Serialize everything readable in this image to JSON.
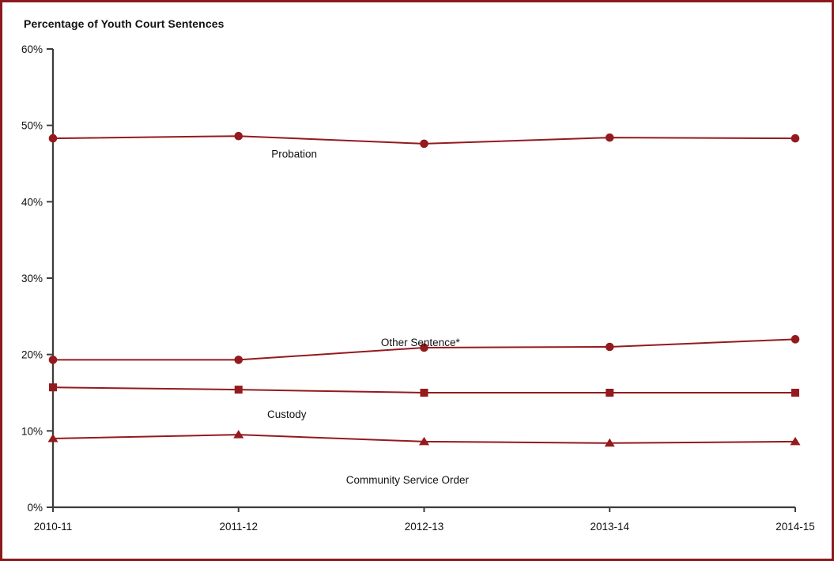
{
  "frame": {
    "border_color": "#8b1a1d",
    "background": "#ffffff"
  },
  "chart_data": {
    "type": "line",
    "title": "Percentage of Youth Court Sentences",
    "categories": [
      "2010-11",
      "2011-12",
      "2012-13",
      "2013-14",
      "2014-15"
    ],
    "series": [
      {
        "name": "Probation",
        "marker": "circle",
        "values": [
          48.3,
          48.6,
          47.6,
          48.4,
          48.3
        ]
      },
      {
        "name": "Other Sentence*",
        "marker": "circle",
        "values": [
          19.3,
          19.3,
          20.9,
          21.0,
          22.0
        ]
      },
      {
        "name": "Custody",
        "marker": "square",
        "values": [
          15.7,
          15.4,
          15.0,
          15.0,
          15.0
        ]
      },
      {
        "name": "Community Service Order",
        "marker": "triangle",
        "values": [
          9.0,
          9.5,
          8.6,
          8.4,
          8.6
        ]
      }
    ],
    "series_labels": [
      {
        "text": "Probation",
        "x": 1.3,
        "y": 46.3
      },
      {
        "text": "Other Sentence*",
        "x": 1.98,
        "y": 21.6
      },
      {
        "text": "Custody",
        "x": 1.26,
        "y": 12.2
      },
      {
        "text": "Community Service Order",
        "x": 1.91,
        "y": 3.6
      }
    ],
    "xlabel": "",
    "ylabel": "",
    "ylim": [
      0,
      60
    ],
    "yticks": [
      {
        "value": 0,
        "label": "0%"
      },
      {
        "value": 10,
        "label": "10%"
      },
      {
        "value": 20,
        "label": "20%"
      },
      {
        "value": 30,
        "label": "30%"
      },
      {
        "value": 40,
        "label": "40%"
      },
      {
        "value": 50,
        "label": "50%"
      },
      {
        "value": 60,
        "label": "60%"
      }
    ],
    "grid": false,
    "legend": "inline-annotations",
    "line_color": "#941a1d",
    "axis_color": "#3d3d3d",
    "text_color": "#111111"
  }
}
